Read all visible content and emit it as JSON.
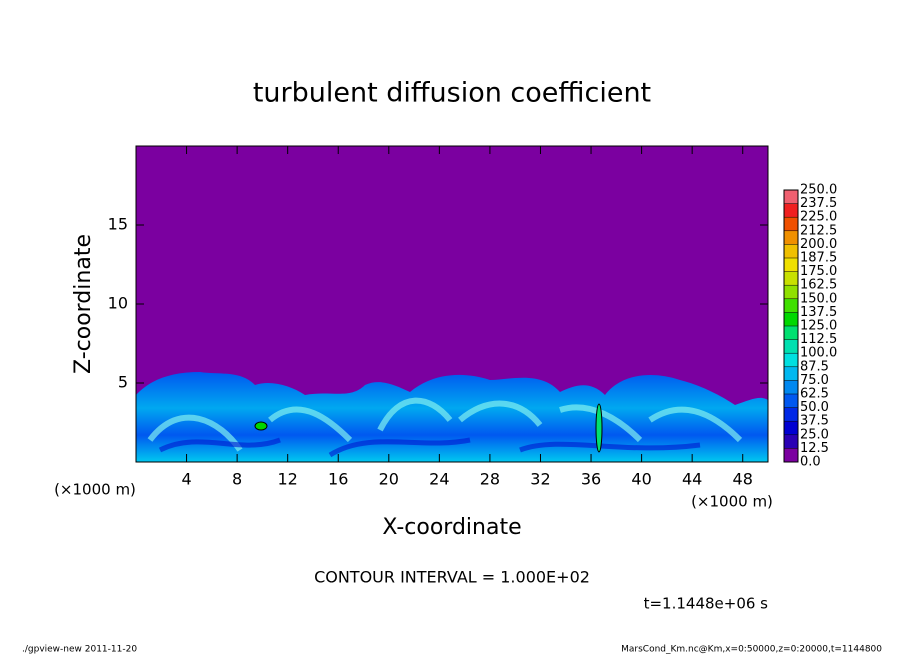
{
  "chart_data": {
    "type": "contour",
    "title": "turbulent diffusion coefficient",
    "x_label": "X-coordinate",
    "y_label": "Z-coordinate",
    "x_unit": "(×1000 m)",
    "xlim": [
      0,
      50
    ],
    "xticks": [
      4,
      8,
      12,
      16,
      20,
      24,
      28,
      32,
      36,
      40,
      44,
      48
    ],
    "ylim": [
      0,
      20
    ],
    "yticks": [
      5,
      10,
      15
    ],
    "background_color": "#7b00a0",
    "colorbar": {
      "ticks": [
        {
          "value": 0,
          "label": "0.0"
        },
        {
          "value": 12.5,
          "label": "12.5"
        },
        {
          "value": 25,
          "label": "25.0"
        },
        {
          "value": 37.5,
          "label": "37.5"
        },
        {
          "value": 50,
          "label": "50.0"
        },
        {
          "value": 62.5,
          "label": "62.5"
        },
        {
          "value": 75,
          "label": "75.0"
        },
        {
          "value": 87.5,
          "label": "87.5"
        },
        {
          "value": 100,
          "label": "100.0"
        },
        {
          "value": 112.5,
          "label": "112.5"
        },
        {
          "value": 125,
          "label": "125.0"
        },
        {
          "value": 137.5,
          "label": "137.5"
        },
        {
          "value": 150,
          "label": "150.0"
        },
        {
          "value": 162.5,
          "label": "162.5"
        },
        {
          "value": 175,
          "label": "175.0"
        },
        {
          "value": 187.5,
          "label": "187.5"
        },
        {
          "value": 200,
          "label": "200.0"
        },
        {
          "value": 212.5,
          "label": "212.5"
        },
        {
          "value": 225,
          "label": "225.0"
        },
        {
          "value": 237.5,
          "label": "237.5"
        },
        {
          "value": 250,
          "label": "250.0"
        }
      ],
      "colors": [
        "#7b00a0",
        "#2a00b4",
        "#0000d2",
        "#0028e6",
        "#0058f0",
        "#0088f0",
        "#00b8f0",
        "#00e0e0",
        "#00e0b0",
        "#00e070",
        "#00d800",
        "#40e000",
        "#90e000",
        "#c8e000",
        "#f0e000",
        "#f0c000",
        "#f09000",
        "#f05000",
        "#f02020",
        "#f06070"
      ]
    },
    "contour_interval": "CONTOUR INTERVAL = 1.000E+02",
    "time_label": "t=1.1448e+06 s",
    "footer_left": "./gpview-new  2011-11-20",
    "footer_right": "MarsCond_Km.nc@Km,x=0:50000,z=0:20000,t=1144800"
  }
}
